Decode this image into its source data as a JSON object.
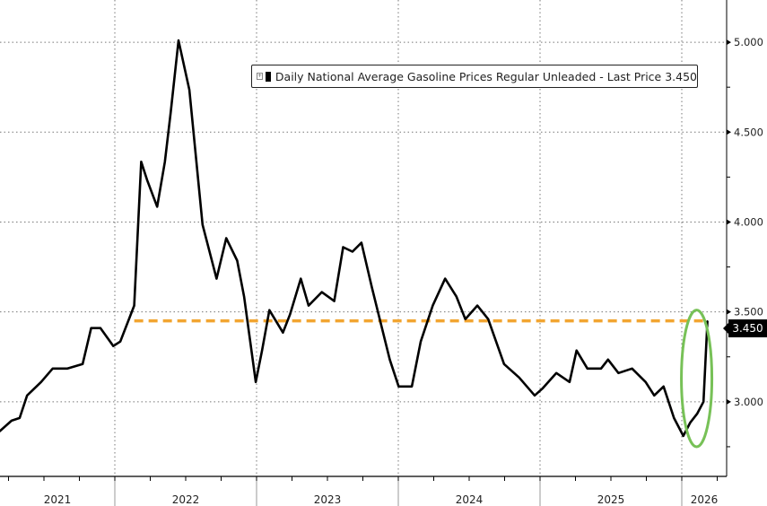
{
  "chart_data": {
    "type": "line",
    "title": "",
    "legend": {
      "label": "Daily National Average Gasoline Prices Regular Unleaded - Last Price 3.450",
      "placement": "top-center",
      "icon": "expand-plus-icon"
    },
    "xlabel": "",
    "ylabel": "",
    "x_ticks": [
      "2021",
      "2022",
      "2023",
      "2024",
      "2025",
      "2026"
    ],
    "xlim": [
      "2021-03-10",
      "2026-04-27"
    ],
    "y_ticks": [
      "3.000",
      "3.500",
      "4.000",
      "4.500",
      "5.000"
    ],
    "ylim": [
      2.585,
      5.235
    ],
    "y_axis_side": "right",
    "grid": true,
    "last_price_label": "3.450",
    "reference_line": {
      "value": 3.45,
      "start": "2022-02-20",
      "color": "#f2a531",
      "style": "dashed"
    },
    "highlight": {
      "shape": "ellipse",
      "color": "#77c157",
      "around": "2026 spike"
    },
    "series": [
      {
        "color": "#000000",
        "points": [
          [
            "2021-03-10",
            2.835
          ],
          [
            "2021-04-10",
            2.895
          ],
          [
            "2021-05-01",
            2.91
          ],
          [
            "2021-05-20",
            3.035
          ],
          [
            "2021-06-25",
            3.11
          ],
          [
            "2021-07-25",
            3.185
          ],
          [
            "2021-09-01",
            3.185
          ],
          [
            "2021-10-10",
            3.21
          ],
          [
            "2021-11-01",
            3.41
          ],
          [
            "2021-11-25",
            3.41
          ],
          [
            "2021-12-28",
            3.31
          ],
          [
            "2022-01-15",
            3.335
          ],
          [
            "2022-02-20",
            3.535
          ],
          [
            "2022-03-10",
            4.335
          ],
          [
            "2022-03-25",
            4.235
          ],
          [
            "2022-04-20",
            4.085
          ],
          [
            "2022-05-10",
            4.335
          ],
          [
            "2022-05-25",
            4.61
          ],
          [
            "2022-06-14",
            5.01
          ],
          [
            "2022-07-12",
            4.735
          ],
          [
            "2022-08-15",
            3.985
          ],
          [
            "2022-09-20",
            3.685
          ],
          [
            "2022-10-15",
            3.91
          ],
          [
            "2022-11-12",
            3.785
          ],
          [
            "2022-11-30",
            3.585
          ],
          [
            "2022-12-30",
            3.11
          ],
          [
            "2023-01-15",
            3.285
          ],
          [
            "2023-02-03",
            3.51
          ],
          [
            "2023-03-10",
            3.385
          ],
          [
            "2023-03-28",
            3.485
          ],
          [
            "2023-04-25",
            3.685
          ],
          [
            "2023-05-15",
            3.535
          ],
          [
            "2023-06-18",
            3.61
          ],
          [
            "2023-07-20",
            3.56
          ],
          [
            "2023-08-12",
            3.86
          ],
          [
            "2023-09-05",
            3.835
          ],
          [
            "2023-09-28",
            3.885
          ],
          [
            "2023-10-25",
            3.635
          ],
          [
            "2023-12-10",
            3.235
          ],
          [
            "2024-01-02",
            3.085
          ],
          [
            "2024-02-05",
            3.085
          ],
          [
            "2024-02-28",
            3.335
          ],
          [
            "2024-03-30",
            3.535
          ],
          [
            "2024-05-01",
            3.685
          ],
          [
            "2024-05-30",
            3.585
          ],
          [
            "2024-06-22",
            3.46
          ],
          [
            "2024-07-23",
            3.535
          ],
          [
            "2024-08-20",
            3.46
          ],
          [
            "2024-09-30",
            3.21
          ],
          [
            "2024-11-08",
            3.135
          ],
          [
            "2024-12-18",
            3.035
          ],
          [
            "2025-01-08",
            3.075
          ],
          [
            "2025-02-12",
            3.16
          ],
          [
            "2025-03-18",
            3.11
          ],
          [
            "2025-04-05",
            3.285
          ],
          [
            "2025-05-03",
            3.185
          ],
          [
            "2025-06-07",
            3.185
          ],
          [
            "2025-06-25",
            3.235
          ],
          [
            "2025-07-22",
            3.16
          ],
          [
            "2025-08-26",
            3.185
          ],
          [
            "2025-09-30",
            3.11
          ],
          [
            "2025-10-22",
            3.035
          ],
          [
            "2025-11-15",
            3.085
          ],
          [
            "2025-12-12",
            2.91
          ],
          [
            "2026-01-05",
            2.81
          ],
          [
            "2026-01-23",
            2.885
          ],
          [
            "2026-02-10",
            2.935
          ],
          [
            "2026-02-26",
            3.0
          ],
          [
            "2026-03-08",
            3.45
          ]
        ]
      }
    ]
  }
}
